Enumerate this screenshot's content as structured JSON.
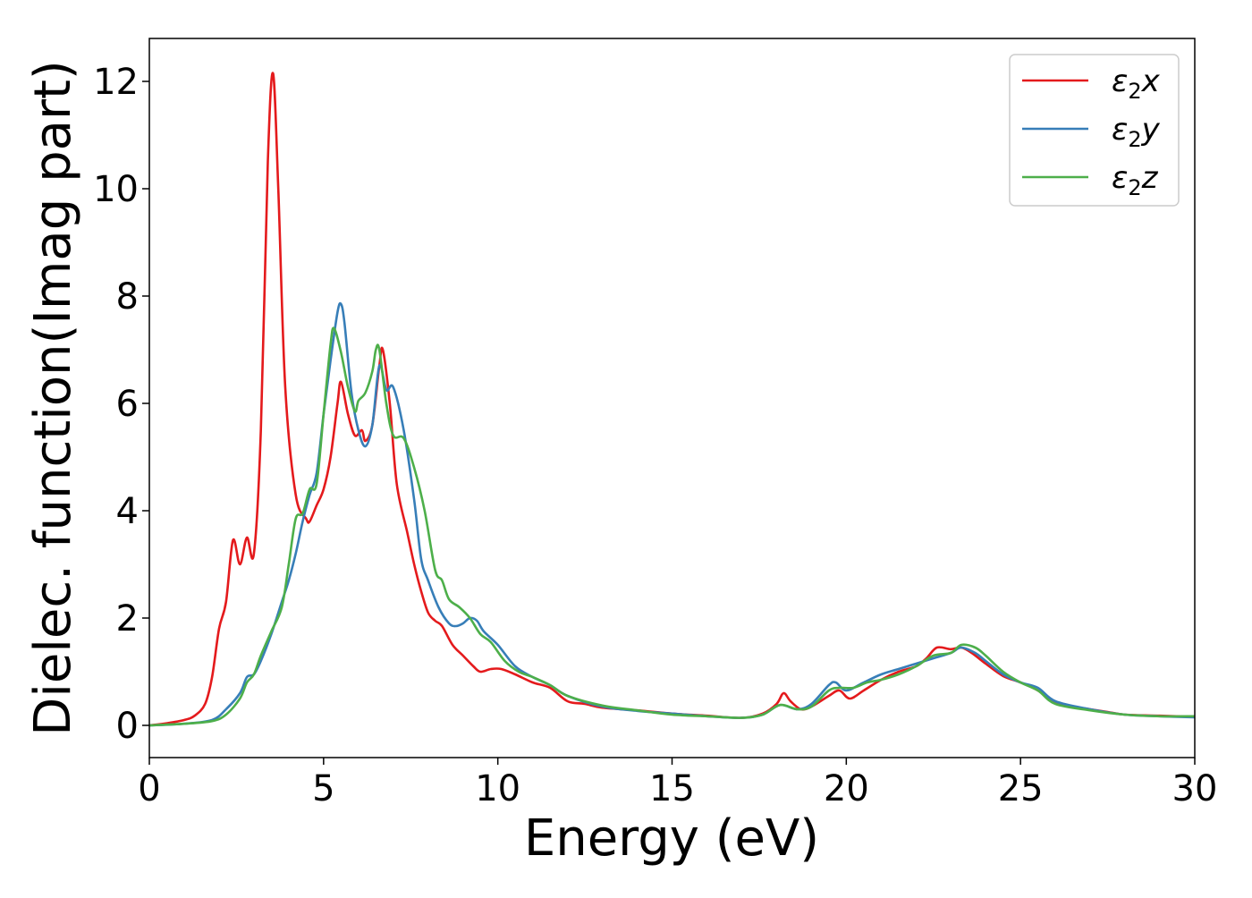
{
  "chart_data": {
    "type": "line",
    "xlabel": "Energy (eV)",
    "ylabel": "Dielec. function(Imag part)",
    "xlim": [
      0,
      30
    ],
    "ylim": [
      -0.6,
      12.8
    ],
    "xticks": [
      0,
      5,
      10,
      15,
      20,
      25,
      30
    ],
    "yticks": [
      0,
      2,
      4,
      6,
      8,
      10,
      12
    ],
    "grid": false,
    "legend_position": "top-right",
    "series": [
      {
        "name": "ε2x",
        "legend": {
          "base": "ε",
          "sub": "2",
          "suffix": "x"
        },
        "color": "#e41a1c",
        "points": [
          [
            0,
            0
          ],
          [
            0.5,
            0.04
          ],
          [
            1,
            0.1
          ],
          [
            1.3,
            0.18
          ],
          [
            1.6,
            0.4
          ],
          [
            1.8,
            0.9
          ],
          [
            2,
            1.8
          ],
          [
            2.2,
            2.3
          ],
          [
            2.4,
            3.45
          ],
          [
            2.6,
            3.0
          ],
          [
            2.8,
            3.5
          ],
          [
            3,
            3.2
          ],
          [
            3.2,
            5.5
          ],
          [
            3.4,
            10.5
          ],
          [
            3.55,
            12.15
          ],
          [
            3.7,
            10.0
          ],
          [
            3.9,
            6.3
          ],
          [
            4.2,
            4.3
          ],
          [
            4.5,
            3.85
          ],
          [
            4.6,
            3.8
          ],
          [
            4.8,
            4.1
          ],
          [
            5,
            4.4
          ],
          [
            5.2,
            5.0
          ],
          [
            5.4,
            6.0
          ],
          [
            5.5,
            6.4
          ],
          [
            5.7,
            5.8
          ],
          [
            5.9,
            5.4
          ],
          [
            6.1,
            5.5
          ],
          [
            6.2,
            5.3
          ],
          [
            6.4,
            5.6
          ],
          [
            6.6,
            6.7
          ],
          [
            6.7,
            7.0
          ],
          [
            6.9,
            6.0
          ],
          [
            7.1,
            4.5
          ],
          [
            7.4,
            3.6
          ],
          [
            7.6,
            3.0
          ],
          [
            7.8,
            2.5
          ],
          [
            8,
            2.1
          ],
          [
            8.2,
            1.95
          ],
          [
            8.4,
            1.85
          ],
          [
            8.7,
            1.5
          ],
          [
            9,
            1.3
          ],
          [
            9.3,
            1.1
          ],
          [
            9.5,
            1.0
          ],
          [
            9.8,
            1.05
          ],
          [
            10.1,
            1.05
          ],
          [
            10.5,
            0.95
          ],
          [
            11,
            0.8
          ],
          [
            11.5,
            0.7
          ],
          [
            12,
            0.45
          ],
          [
            12.5,
            0.4
          ],
          [
            13,
            0.33
          ],
          [
            14,
            0.28
          ],
          [
            15,
            0.22
          ],
          [
            16,
            0.18
          ],
          [
            17,
            0.14
          ],
          [
            17.6,
            0.22
          ],
          [
            18,
            0.4
          ],
          [
            18.2,
            0.6
          ],
          [
            18.4,
            0.45
          ],
          [
            18.7,
            0.3
          ],
          [
            19,
            0.35
          ],
          [
            19.5,
            0.55
          ],
          [
            19.8,
            0.65
          ],
          [
            20.1,
            0.5
          ],
          [
            20.5,
            0.65
          ],
          [
            21,
            0.85
          ],
          [
            21.5,
            1.0
          ],
          [
            22,
            1.1
          ],
          [
            22.3,
            1.25
          ],
          [
            22.6,
            1.45
          ],
          [
            23,
            1.42
          ],
          [
            23.3,
            1.45
          ],
          [
            23.6,
            1.35
          ],
          [
            24,
            1.15
          ],
          [
            24.5,
            0.92
          ],
          [
            25,
            0.8
          ],
          [
            25.5,
            0.65
          ],
          [
            26,
            0.42
          ],
          [
            26.5,
            0.35
          ],
          [
            27,
            0.3
          ],
          [
            27.5,
            0.25
          ],
          [
            28,
            0.2
          ],
          [
            29,
            0.18
          ],
          [
            30,
            0.16
          ]
        ]
      },
      {
        "name": "ε2y",
        "legend": {
          "base": "ε",
          "sub": "2",
          "suffix": "y"
        },
        "color": "#377eb8",
        "points": [
          [
            0,
            0
          ],
          [
            1,
            0.03
          ],
          [
            1.8,
            0.1
          ],
          [
            2.2,
            0.3
          ],
          [
            2.6,
            0.6
          ],
          [
            2.8,
            0.9
          ],
          [
            3,
            0.95
          ],
          [
            3.2,
            1.2
          ],
          [
            3.5,
            1.7
          ],
          [
            3.8,
            2.3
          ],
          [
            4,
            2.7
          ],
          [
            4.2,
            3.2
          ],
          [
            4.4,
            3.8
          ],
          [
            4.6,
            4.3
          ],
          [
            4.8,
            4.7
          ],
          [
            5,
            5.8
          ],
          [
            5.2,
            6.8
          ],
          [
            5.4,
            7.7
          ],
          [
            5.5,
            7.85
          ],
          [
            5.6,
            7.5
          ],
          [
            5.8,
            6.2
          ],
          [
            6,
            5.5
          ],
          [
            6.2,
            5.2
          ],
          [
            6.4,
            5.6
          ],
          [
            6.6,
            6.7
          ],
          [
            6.8,
            6.25
          ],
          [
            7,
            6.3
          ],
          [
            7.3,
            5.5
          ],
          [
            7.6,
            4.2
          ],
          [
            7.8,
            3.1
          ],
          [
            8,
            2.7
          ],
          [
            8.3,
            2.2
          ],
          [
            8.6,
            1.9
          ],
          [
            8.8,
            1.85
          ],
          [
            9,
            1.9
          ],
          [
            9.2,
            2.0
          ],
          [
            9.4,
            1.95
          ],
          [
            9.6,
            1.75
          ],
          [
            10,
            1.5
          ],
          [
            10.5,
            1.1
          ],
          [
            11,
            0.9
          ],
          [
            11.5,
            0.75
          ],
          [
            12,
            0.55
          ],
          [
            13,
            0.35
          ],
          [
            14,
            0.27
          ],
          [
            15,
            0.22
          ],
          [
            16,
            0.17
          ],
          [
            17,
            0.14
          ],
          [
            17.6,
            0.2
          ],
          [
            18.1,
            0.38
          ],
          [
            18.6,
            0.3
          ],
          [
            19,
            0.4
          ],
          [
            19.5,
            0.75
          ],
          [
            19.7,
            0.8
          ],
          [
            20,
            0.65
          ],
          [
            20.5,
            0.8
          ],
          [
            21,
            0.95
          ],
          [
            21.5,
            1.05
          ],
          [
            22,
            1.15
          ],
          [
            22.5,
            1.25
          ],
          [
            23,
            1.35
          ],
          [
            23.3,
            1.45
          ],
          [
            23.7,
            1.35
          ],
          [
            24,
            1.2
          ],
          [
            24.5,
            0.95
          ],
          [
            25,
            0.8
          ],
          [
            25.5,
            0.7
          ],
          [
            26,
            0.45
          ],
          [
            27,
            0.3
          ],
          [
            28,
            0.2
          ],
          [
            29,
            0.17
          ],
          [
            30,
            0.15
          ]
        ]
      },
      {
        "name": "ε2z",
        "legend": {
          "base": "ε",
          "sub": "2",
          "suffix": "z"
        },
        "color": "#4daf4a",
        "points": [
          [
            0,
            0
          ],
          [
            1,
            0.03
          ],
          [
            1.8,
            0.08
          ],
          [
            2.2,
            0.2
          ],
          [
            2.6,
            0.5
          ],
          [
            2.8,
            0.8
          ],
          [
            3,
            0.95
          ],
          [
            3.2,
            1.3
          ],
          [
            3.5,
            1.75
          ],
          [
            3.8,
            2.2
          ],
          [
            4,
            3.0
          ],
          [
            4.2,
            3.85
          ],
          [
            4.4,
            3.95
          ],
          [
            4.6,
            4.4
          ],
          [
            4.8,
            4.5
          ],
          [
            5,
            5.8
          ],
          [
            5.2,
            7.1
          ],
          [
            5.3,
            7.4
          ],
          [
            5.5,
            6.95
          ],
          [
            5.7,
            6.3
          ],
          [
            5.9,
            5.85
          ],
          [
            6,
            6.05
          ],
          [
            6.2,
            6.2
          ],
          [
            6.4,
            6.6
          ],
          [
            6.5,
            7.0
          ],
          [
            6.6,
            7.0
          ],
          [
            6.8,
            6.0
          ],
          [
            7,
            5.4
          ],
          [
            7.3,
            5.35
          ],
          [
            7.6,
            4.8
          ],
          [
            7.9,
            4.0
          ],
          [
            8.2,
            2.9
          ],
          [
            8.4,
            2.7
          ],
          [
            8.6,
            2.35
          ],
          [
            8.9,
            2.2
          ],
          [
            9.2,
            2.0
          ],
          [
            9.5,
            1.7
          ],
          [
            9.8,
            1.55
          ],
          [
            10.2,
            1.2
          ],
          [
            10.6,
            1.0
          ],
          [
            11,
            0.9
          ],
          [
            11.5,
            0.75
          ],
          [
            12,
            0.55
          ],
          [
            13,
            0.37
          ],
          [
            14,
            0.28
          ],
          [
            15,
            0.2
          ],
          [
            16,
            0.17
          ],
          [
            17,
            0.14
          ],
          [
            17.6,
            0.2
          ],
          [
            18.1,
            0.38
          ],
          [
            18.6,
            0.3
          ],
          [
            19,
            0.35
          ],
          [
            19.5,
            0.65
          ],
          [
            19.8,
            0.7
          ],
          [
            20.2,
            0.7
          ],
          [
            20.6,
            0.8
          ],
          [
            21,
            0.85
          ],
          [
            21.5,
            0.95
          ],
          [
            22,
            1.1
          ],
          [
            22.5,
            1.3
          ],
          [
            23,
            1.35
          ],
          [
            23.3,
            1.5
          ],
          [
            23.7,
            1.45
          ],
          [
            24,
            1.3
          ],
          [
            24.5,
            1.0
          ],
          [
            25,
            0.8
          ],
          [
            25.5,
            0.65
          ],
          [
            26,
            0.4
          ],
          [
            27,
            0.28
          ],
          [
            28,
            0.2
          ],
          [
            29,
            0.17
          ],
          [
            30,
            0.17
          ]
        ]
      }
    ]
  }
}
